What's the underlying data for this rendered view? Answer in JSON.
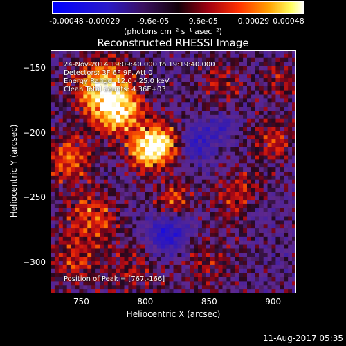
{
  "chart_data": {
    "type": "heatmap",
    "title": "Reconstructed RHESSI Image",
    "xlabel": "Heliocentric X (arcsec)",
    "ylabel": "Heliocentric Y (arcsec)",
    "xlim": [
      726,
      918
    ],
    "ylim": [
      -324,
      -136
    ],
    "x_ticks": [
      "750",
      "800",
      "850",
      "900"
    ],
    "x_tick_values": [
      750,
      800,
      850,
      900
    ],
    "y_ticks": [
      "-150",
      "-200",
      "-250",
      "-300"
    ],
    "y_tick_values": [
      -150,
      -200,
      -250,
      -300
    ],
    "colorbar": {
      "ticks": [
        "-0.00048",
        "-0.00029",
        "-9.6e-05",
        "9.6e-05",
        "0.00029",
        "0.00048"
      ],
      "units": "(photons cm⁻² s⁻¹ asec⁻²)",
      "range": [
        -0.00048,
        0.00048
      ]
    },
    "annotations": [
      "24-Nov-2014 19:09:40.000 to 19:19:40.000",
      "Detectors: 3F 6F 9F, Att 0",
      "Energy Range: 12.0 - 25.0 keV",
      "Clean      Total counts: 4.36E+03"
    ],
    "peak_label": "Position of Peak = [767,-166]",
    "peak_position": [
      767,
      -166
    ],
    "colors": {
      "negative": "#1a10d8",
      "zero": "#6a2a9a",
      "low": "#b00818",
      "mid": "#ff5a00",
      "high": "#ffe040",
      "max": "#ffffff"
    }
  },
  "footer": {
    "timestamp": "11-Aug-2017 05:35"
  }
}
